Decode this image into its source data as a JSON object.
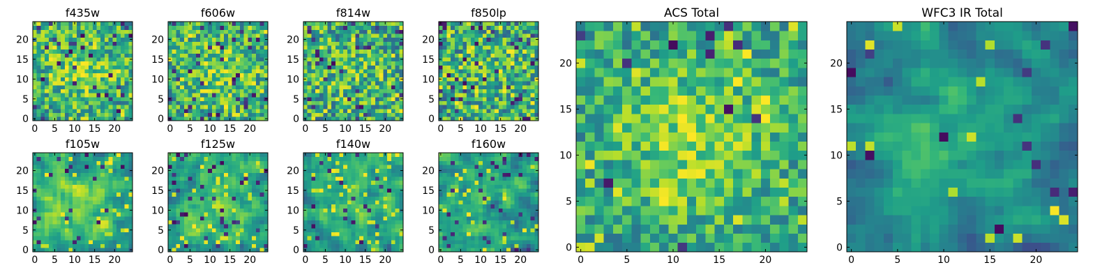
{
  "chart_data": [
    {
      "type": "heatmap",
      "title": "f435w",
      "xlim": [
        0,
        24
      ],
      "ylim": [
        0,
        24
      ],
      "colormap": "viridis",
      "x_ticks": [
        "0",
        "5",
        "10",
        "15",
        "20"
      ],
      "y_ticks": [
        "0",
        "5",
        "10",
        "15",
        "20"
      ]
    },
    {
      "type": "heatmap",
      "title": "f606w",
      "xlim": [
        0,
        24
      ],
      "ylim": [
        0,
        24
      ],
      "colormap": "viridis",
      "x_ticks": [
        "0",
        "5",
        "10",
        "15",
        "20"
      ],
      "y_ticks": [
        "0",
        "5",
        "10",
        "15",
        "20"
      ]
    },
    {
      "type": "heatmap",
      "title": "f814w",
      "xlim": [
        0,
        24
      ],
      "ylim": [
        0,
        24
      ],
      "colormap": "viridis",
      "x_ticks": [
        "0",
        "5",
        "10",
        "15",
        "20"
      ],
      "y_ticks": [
        "0",
        "5",
        "10",
        "15",
        "20"
      ]
    },
    {
      "type": "heatmap",
      "title": "f850lp",
      "xlim": [
        0,
        24
      ],
      "ylim": [
        0,
        24
      ],
      "colormap": "viridis",
      "x_ticks": [
        "0",
        "5",
        "10",
        "15",
        "20"
      ],
      "y_ticks": [
        "0",
        "5",
        "10",
        "15",
        "20"
      ]
    },
    {
      "type": "heatmap",
      "title": "f105w",
      "xlim": [
        0,
        24
      ],
      "ylim": [
        0,
        24
      ],
      "colormap": "viridis",
      "x_ticks": [
        "0",
        "5",
        "10",
        "15",
        "20"
      ],
      "y_ticks": [
        "0",
        "5",
        "10",
        "15",
        "20"
      ]
    },
    {
      "type": "heatmap",
      "title": "f125w",
      "xlim": [
        0,
        24
      ],
      "ylim": [
        0,
        24
      ],
      "colormap": "viridis",
      "x_ticks": [
        "0",
        "5",
        "10",
        "15",
        "20"
      ],
      "y_ticks": [
        "0",
        "5",
        "10",
        "15",
        "20"
      ]
    },
    {
      "type": "heatmap",
      "title": "f140w",
      "xlim": [
        0,
        24
      ],
      "ylim": [
        0,
        24
      ],
      "colormap": "viridis",
      "x_ticks": [
        "0",
        "5",
        "10",
        "15",
        "20"
      ],
      "y_ticks": [
        "0",
        "5",
        "10",
        "15",
        "20"
      ]
    },
    {
      "type": "heatmap",
      "title": "f160w",
      "xlim": [
        0,
        24
      ],
      "ylim": [
        0,
        24
      ],
      "colormap": "viridis",
      "x_ticks": [
        "0",
        "5",
        "10",
        "15",
        "20"
      ],
      "y_ticks": [
        "0",
        "5",
        "10",
        "15",
        "20"
      ]
    },
    {
      "type": "heatmap",
      "title": "ACS Total",
      "xlim": [
        0,
        24
      ],
      "ylim": [
        0,
        24
      ],
      "colormap": "viridis",
      "x_ticks": [
        "0",
        "5",
        "10",
        "15",
        "20"
      ],
      "y_ticks": [
        "0",
        "5",
        "10",
        "15",
        "20"
      ]
    },
    {
      "type": "heatmap",
      "title": "WFC3 IR Total",
      "xlim": [
        0,
        24
      ],
      "ylim": [
        0,
        24
      ],
      "colormap": "viridis",
      "x_ticks": [
        "0",
        "5",
        "10",
        "15",
        "20"
      ],
      "y_ticks": [
        "0",
        "5",
        "10",
        "15",
        "20"
      ]
    }
  ]
}
